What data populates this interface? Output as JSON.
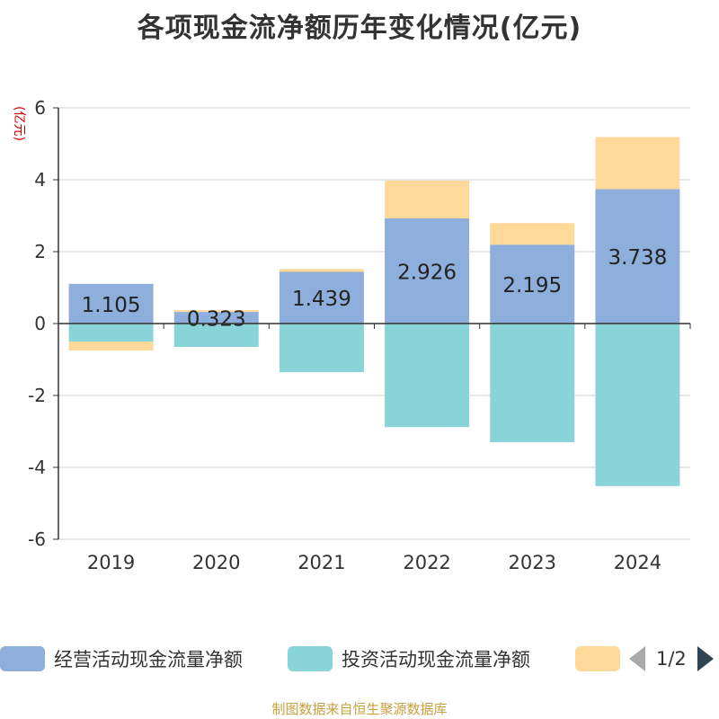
{
  "chart_data": {
    "type": "bar",
    "stacked": true,
    "title": "各项现金流净额历年变化情况(亿元)",
    "ylabel": "(亿元)",
    "categories": [
      "2019",
      "2020",
      "2021",
      "2022",
      "2023",
      "2024"
    ],
    "ylim": [
      -6,
      6
    ],
    "yticks": [
      6,
      4,
      2,
      0,
      -2,
      -4,
      -6
    ],
    "grid": true,
    "series": [
      {
        "name": "经营活动现金流量净额",
        "color": "#8eaedb",
        "values": [
          1.105,
          0.323,
          1.439,
          2.926,
          2.195,
          3.738
        ],
        "labels": [
          "1.105",
          "0.323",
          "1.439",
          "2.926",
          "2.195",
          "3.738"
        ]
      },
      {
        "name": "投资活动现金流量净额",
        "color": "#88d4d8",
        "values": [
          -0.5,
          -0.65,
          -1.35,
          -2.88,
          -3.3,
          -4.52
        ]
      },
      {
        "name": "",
        "color": "#ffd99a",
        "values": [
          -0.25,
          0.05,
          0.08,
          1.05,
          0.6,
          1.45
        ]
      }
    ]
  },
  "legend": {
    "items": [
      {
        "label": "经营活动现金流量净额",
        "color": "#8eaedb"
      },
      {
        "label": "投资活动现金流量净额",
        "color": "#88d4d8"
      },
      {
        "label": "",
        "color": "#ffd99a"
      }
    ],
    "page_text": "1/2"
  },
  "source": "制图数据来自恒生聚源数据库"
}
